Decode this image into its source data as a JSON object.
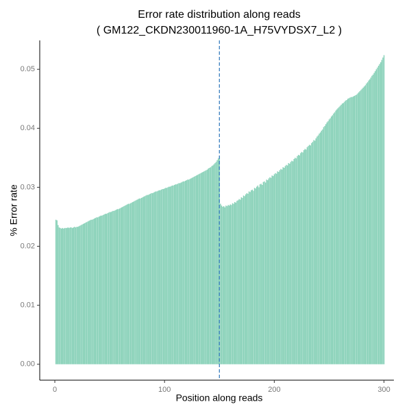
{
  "chart_data": {
    "type": "bar",
    "title": "Error rate distribution along reads",
    "subtitle": "( GM122_CKDN230011960-1A_H75VYDSX7_L2 )",
    "xlabel": "Position along reads",
    "ylabel": "% Error rate",
    "color": "#88d1b8",
    "vline": 150,
    "vline_color": "#3a7ebf",
    "xlim": [
      -13.75,
      309
    ],
    "ylim": [
      -0.0027,
      0.0549
    ],
    "xticks": [
      0,
      100,
      200,
      300
    ],
    "yticks": [
      {
        "value": 0,
        "label": "0.00"
      },
      {
        "value": 0.01,
        "label": "0.01"
      },
      {
        "value": 0.02,
        "label": "0.02"
      },
      {
        "value": 0.03,
        "label": "0.03"
      },
      {
        "value": 0.04,
        "label": "0.04"
      },
      {
        "value": 0.05,
        "label": "0.05"
      }
    ],
    "x": [
      1,
      2,
      3,
      4,
      5,
      6,
      7,
      8,
      9,
      10,
      11,
      12,
      13,
      14,
      15,
      16,
      17,
      18,
      19,
      20,
      21,
      22,
      23,
      24,
      25,
      26,
      27,
      28,
      29,
      30,
      31,
      32,
      33,
      34,
      35,
      36,
      37,
      38,
      39,
      40,
      41,
      42,
      43,
      44,
      45,
      46,
      47,
      48,
      49,
      50,
      51,
      52,
      53,
      54,
      55,
      56,
      57,
      58,
      59,
      60,
      61,
      62,
      63,
      64,
      65,
      66,
      67,
      68,
      69,
      70,
      71,
      72,
      73,
      74,
      75,
      76,
      77,
      78,
      79,
      80,
      81,
      82,
      83,
      84,
      85,
      86,
      87,
      88,
      89,
      90,
      91,
      92,
      93,
      94,
      95,
      96,
      97,
      98,
      99,
      100,
      101,
      102,
      103,
      104,
      105,
      106,
      107,
      108,
      109,
      110,
      111,
      112,
      113,
      114,
      115,
      116,
      117,
      118,
      119,
      120,
      121,
      122,
      123,
      124,
      125,
      126,
      127,
      128,
      129,
      130,
      131,
      132,
      133,
      134,
      135,
      136,
      137,
      138,
      139,
      140,
      141,
      142,
      143,
      144,
      145,
      146,
      147,
      148,
      149,
      150,
      151,
      152,
      153,
      154,
      155,
      156,
      157,
      158,
      159,
      160,
      161,
      162,
      163,
      164,
      165,
      166,
      167,
      168,
      169,
      170,
      171,
      172,
      173,
      174,
      175,
      176,
      177,
      178,
      179,
      180,
      181,
      182,
      183,
      184,
      185,
      186,
      187,
      188,
      189,
      190,
      191,
      192,
      193,
      194,
      195,
      196,
      197,
      198,
      199,
      200,
      201,
      202,
      203,
      204,
      205,
      206,
      207,
      208,
      209,
      210,
      211,
      212,
      213,
      214,
      215,
      216,
      217,
      218,
      219,
      220,
      221,
      222,
      223,
      224,
      225,
      226,
      227,
      228,
      229,
      230,
      231,
      232,
      233,
      234,
      235,
      236,
      237,
      238,
      239,
      240,
      241,
      242,
      243,
      244,
      245,
      246,
      247,
      248,
      249,
      250,
      251,
      252,
      253,
      254,
      255,
      256,
      257,
      258,
      259,
      260,
      261,
      262,
      263,
      264,
      265,
      266,
      267,
      268,
      269,
      270,
      271,
      272,
      273,
      274,
      275,
      276,
      277,
      278,
      279,
      280,
      281,
      282,
      283,
      284,
      285,
      286,
      287,
      288,
      289,
      290,
      291,
      292,
      293,
      294,
      295,
      296,
      297,
      298,
      299,
      300
    ],
    "values": [
      0.0245,
      0.0244,
      0.0236,
      0.0232,
      0.0231,
      0.023,
      0.0231,
      0.023,
      0.0231,
      0.0231,
      0.0231,
      0.0232,
      0.0231,
      0.0232,
      0.0232,
      0.0231,
      0.0232,
      0.0233,
      0.0232,
      0.0233,
      0.0233,
      0.0234,
      0.0235,
      0.0236,
      0.0237,
      0.0238,
      0.0239,
      0.024,
      0.0241,
      0.0242,
      0.0243,
      0.0244,
      0.0245,
      0.0245,
      0.0246,
      0.0247,
      0.0248,
      0.0249,
      0.0249,
      0.025,
      0.0251,
      0.0252,
      0.0252,
      0.0253,
      0.0254,
      0.0255,
      0.0255,
      0.0256,
      0.0257,
      0.0258,
      0.0258,
      0.0259,
      0.026,
      0.026,
      0.0261,
      0.0262,
      0.0263,
      0.0263,
      0.0264,
      0.0265,
      0.0266,
      0.0267,
      0.0268,
      0.0269,
      0.027,
      0.0271,
      0.0272,
      0.0272,
      0.0273,
      0.0274,
      0.0275,
      0.0276,
      0.0277,
      0.0278,
      0.0279,
      0.028,
      0.0281,
      0.0281,
      0.0282,
      0.0283,
      0.0284,
      0.0285,
      0.0286,
      0.0287,
      0.0287,
      0.0288,
      0.0289,
      0.029,
      0.029,
      0.0291,
      0.0292,
      0.0293,
      0.0293,
      0.0294,
      0.0295,
      0.0295,
      0.0296,
      0.0297,
      0.0297,
      0.0298,
      0.0299,
      0.0299,
      0.03,
      0.0301,
      0.0301,
      0.0302,
      0.0303,
      0.0303,
      0.0304,
      0.0305,
      0.0305,
      0.0306,
      0.0307,
      0.0307,
      0.0308,
      0.0309,
      0.031,
      0.031,
      0.0311,
      0.0312,
      0.0313,
      0.0313,
      0.0314,
      0.0315,
      0.0316,
      0.0317,
      0.0318,
      0.0319,
      0.032,
      0.0321,
      0.0322,
      0.0323,
      0.0324,
      0.0325,
      0.0326,
      0.0327,
      0.0328,
      0.0329,
      0.033,
      0.0332,
      0.0333,
      0.0334,
      0.0336,
      0.0337,
      0.0339,
      0.0341,
      0.0343,
      0.0346,
      0.0349,
      0.0352,
      0.0272,
      0.0269,
      0.0267,
      0.0268,
      0.0266,
      0.0269,
      0.0268,
      0.027,
      0.0269,
      0.0271,
      0.027,
      0.0273,
      0.0272,
      0.0275,
      0.0274,
      0.0277,
      0.0278,
      0.028,
      0.0279,
      0.0283,
      0.0282,
      0.0286,
      0.0285,
      0.0288,
      0.029,
      0.0289,
      0.0293,
      0.0292,
      0.0295,
      0.0296,
      0.0294,
      0.0299,
      0.0298,
      0.0301,
      0.0303,
      0.03,
      0.0305,
      0.0306,
      0.0304,
      0.0309,
      0.031,
      0.0308,
      0.0313,
      0.0312,
      0.0315,
      0.0317,
      0.0316,
      0.032,
      0.0319,
      0.0322,
      0.0324,
      0.0323,
      0.0327,
      0.0326,
      0.0329,
      0.0331,
      0.033,
      0.0334,
      0.0333,
      0.0336,
      0.0338,
      0.0337,
      0.0341,
      0.034,
      0.0343,
      0.0345,
      0.0344,
      0.0348,
      0.035,
      0.0349,
      0.0353,
      0.0355,
      0.0354,
      0.0358,
      0.036,
      0.0359,
      0.0363,
      0.0365,
      0.0364,
      0.0368,
      0.037,
      0.0372,
      0.0371,
      0.0375,
      0.0377,
      0.038,
      0.0379,
      0.0383,
      0.0386,
      0.0388,
      0.0391,
      0.0393,
      0.0396,
      0.0398,
      0.0402,
      0.0404,
      0.0407,
      0.041,
      0.0412,
      0.0415,
      0.0417,
      0.042,
      0.0422,
      0.0425,
      0.0427,
      0.043,
      0.0432,
      0.0434,
      0.0436,
      0.0438,
      0.044,
      0.0442,
      0.0443,
      0.0445,
      0.0447,
      0.0448,
      0.045,
      0.0451,
      0.0452,
      0.0453,
      0.0453,
      0.0454,
      0.0455,
      0.0456,
      0.0457,
      0.0459,
      0.0461,
      0.0463,
      0.0465,
      0.0467,
      0.0469,
      0.0471,
      0.0473,
      0.0476,
      0.0478,
      0.0481,
      0.0483,
      0.0486,
      0.0489,
      0.0491,
      0.0494,
      0.0497,
      0.05,
      0.0503,
      0.0506,
      0.0509,
      0.0512,
      0.0516,
      0.052,
      0.0524
    ]
  }
}
